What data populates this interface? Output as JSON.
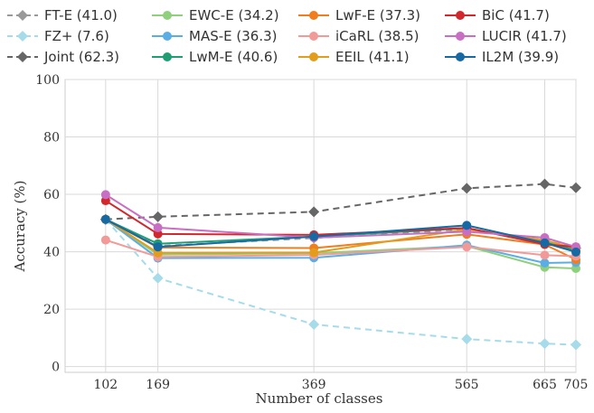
{
  "chart_data": {
    "type": "line",
    "xlabel": "Number of classes",
    "ylabel": "Accuracy (%)",
    "x": [
      102,
      169,
      369,
      565,
      665,
      705
    ],
    "x_ticks": [
      "102",
      "169",
      "369",
      "565",
      "665",
      "705"
    ],
    "xlim": [
      50,
      705
    ],
    "ylim": [
      -2,
      100
    ],
    "y_ticks": [
      "0",
      "20",
      "40",
      "60",
      "80",
      "100"
    ],
    "grid": true,
    "legend_placement": "top, outside plot, 4 columns",
    "series": [
      {
        "name": "FT-E (41.0)",
        "color": "#999999",
        "style": "dashed",
        "marker": "diamond",
        "values": [
          51.3,
          42.0,
          44.8,
          47.9,
          44.0,
          41.3
        ]
      },
      {
        "name": "FZ+ (7.6)",
        "color": "#a6dcea",
        "style": "dashed",
        "marker": "diamond",
        "values": [
          51.3,
          30.8,
          14.7,
          9.6,
          8.0,
          7.6
        ]
      },
      {
        "name": "Joint (62.3)",
        "color": "#666666",
        "style": "dashed",
        "marker": "diamond",
        "values": [
          51.3,
          52.2,
          53.9,
          62.1,
          63.6,
          62.3
        ]
      },
      {
        "name": "EWC-E (34.2)",
        "color": "#8fd07c",
        "style": "solid",
        "marker": "circle",
        "values": [
          51.3,
          39.0,
          39.5,
          42.0,
          34.6,
          34.2
        ]
      },
      {
        "name": "MAS-E (36.3)",
        "color": "#5aaee5",
        "style": "solid",
        "marker": "circle",
        "values": [
          51.3,
          37.8,
          37.9,
          42.3,
          36.1,
          36.3
        ]
      },
      {
        "name": "LwM-E (40.6)",
        "color": "#1f9e73",
        "style": "solid",
        "marker": "circle",
        "values": [
          51.3,
          42.8,
          45.3,
          48.2,
          43.3,
          40.6
        ]
      },
      {
        "name": "LwF-E (37.3)",
        "color": "#f07d1e",
        "style": "solid",
        "marker": "circle",
        "values": [
          51.3,
          41.5,
          41.3,
          46.1,
          42.5,
          37.3
        ]
      },
      {
        "name": "iCaRL (38.5)",
        "color": "#f29a98",
        "style": "solid",
        "marker": "circle",
        "values": [
          44.1,
          38.2,
          38.9,
          41.7,
          38.8,
          38.5
        ]
      },
      {
        "name": "EEIL (41.1)",
        "color": "#e19d1b",
        "style": "solid",
        "marker": "circle",
        "values": [
          51.3,
          39.6,
          39.7,
          47.8,
          44.0,
          41.1
        ]
      },
      {
        "name": "BiC (41.7)",
        "color": "#d1282e",
        "style": "solid",
        "marker": "circle",
        "values": [
          57.8,
          46.2,
          45.9,
          48.3,
          42.6,
          41.7
        ]
      },
      {
        "name": "LUCIR (41.7)",
        "color": "#c96fc3",
        "style": "solid",
        "marker": "circle",
        "values": [
          59.9,
          48.4,
          44.9,
          47.0,
          44.9,
          41.7
        ]
      },
      {
        "name": "IL2M (39.9)",
        "color": "#1669a3",
        "style": "solid",
        "marker": "circle",
        "values": [
          51.3,
          41.7,
          45.3,
          49.2,
          43.1,
          39.9
        ]
      }
    ]
  }
}
